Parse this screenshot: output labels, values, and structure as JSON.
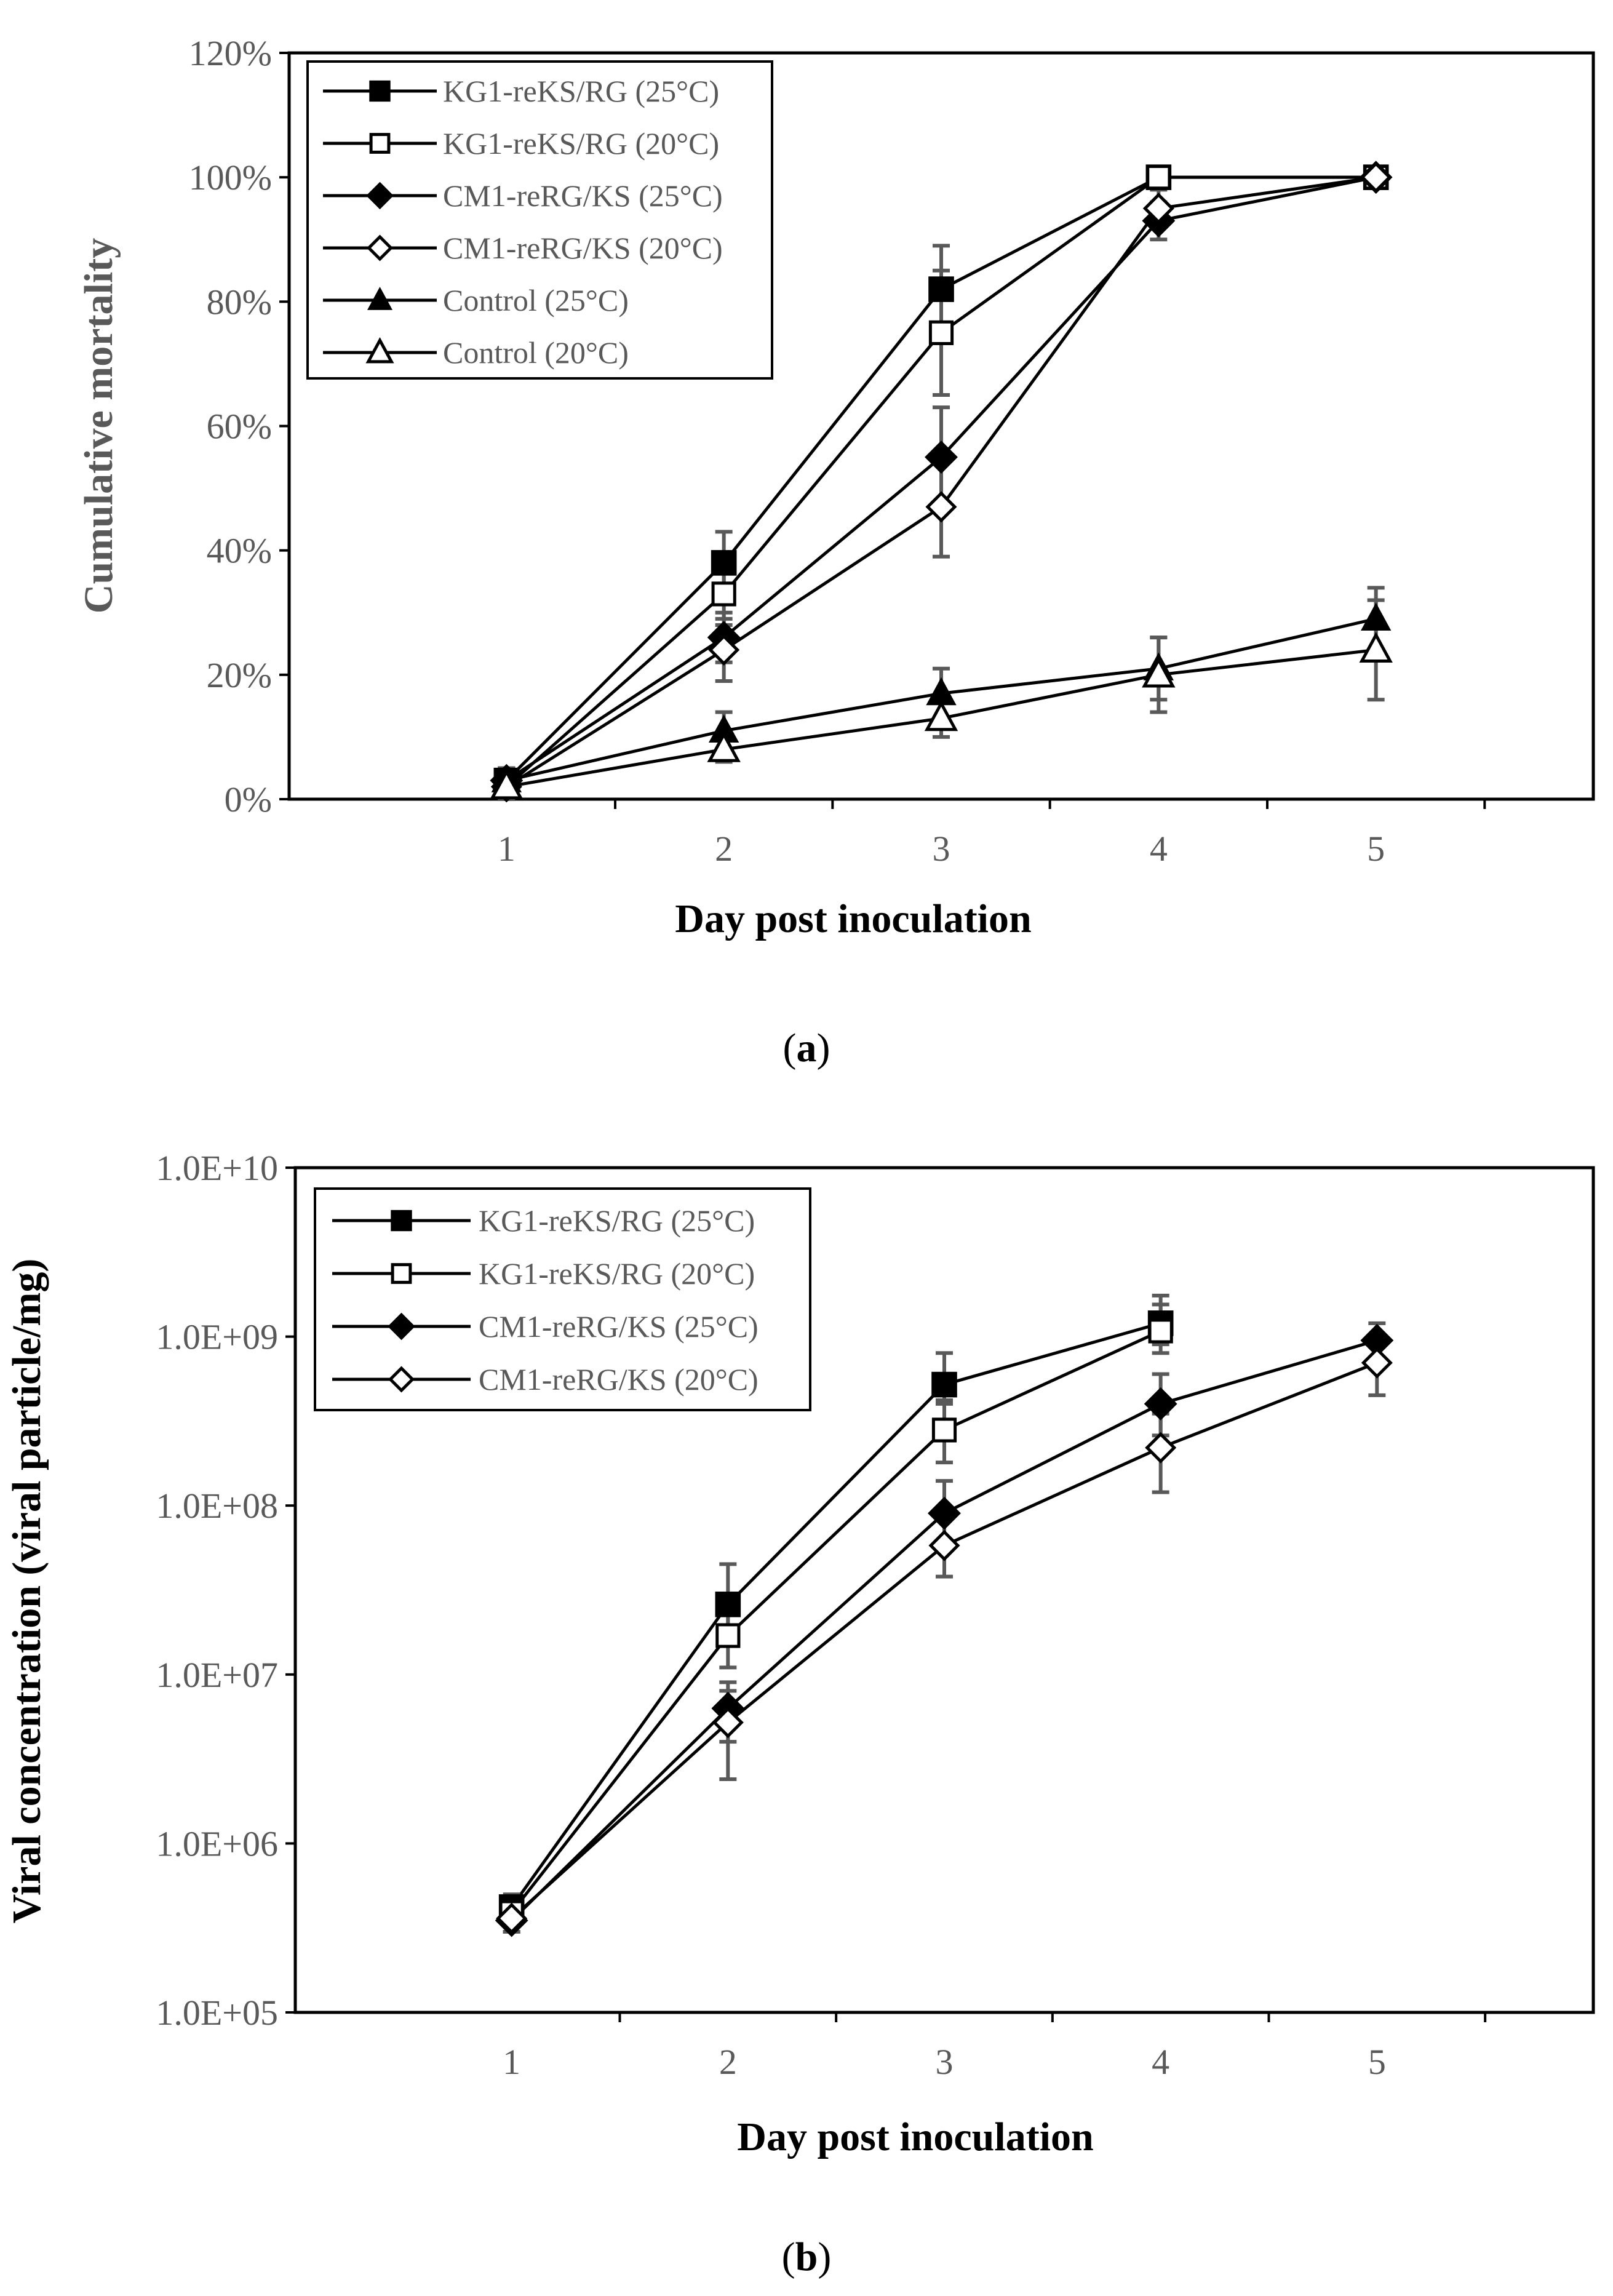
{
  "chart_data": [
    {
      "type": "line",
      "caption": "a",
      "xlabel": "Day post inoculation",
      "ylabel": "Cumulative mortality",
      "x": [
        1,
        2,
        3,
        4,
        5
      ],
      "xlim": [
        0,
        6
      ],
      "ylim": [
        0,
        120
      ],
      "ytick_values": [
        0,
        20,
        40,
        60,
        80,
        100,
        120
      ],
      "ytick_labels": [
        "0%",
        "20%",
        "40%",
        "60%",
        "80%",
        "100%",
        "120%"
      ],
      "xtick_labels": [
        "1",
        "2",
        "3",
        "4",
        "5"
      ],
      "legend_position": "top-left",
      "series": [
        {
          "name": "KG1-reKS/RG (25°C)",
          "marker": "square-filled",
          "values": [
            3,
            38,
            82,
            100,
            100
          ],
          "errors": [
            2,
            5,
            7,
            0,
            0
          ]
        },
        {
          "name": "KG1-reKS/RG (20°C)",
          "marker": "square-open",
          "values": [
            2,
            33,
            75,
            100,
            100
          ],
          "errors": [
            2,
            5,
            10,
            0,
            0
          ]
        },
        {
          "name": "CM1-reRG/KS (25°C)",
          "marker": "diamond-filled",
          "values": [
            3,
            26,
            55,
            93,
            100
          ],
          "errors": [
            2,
            4,
            8,
            3,
            0
          ]
        },
        {
          "name": "CM1-reRG/KS (20°C)",
          "marker": "diamond-open",
          "values": [
            2,
            24,
            47,
            95,
            100
          ],
          "errors": [
            2,
            5,
            8,
            3,
            0
          ]
        },
        {
          "name": "Control (25°C)",
          "marker": "triangle-filled",
          "values": [
            3,
            11,
            17,
            21,
            29
          ],
          "errors": [
            2,
            3,
            4,
            5,
            5
          ]
        },
        {
          "name": "Control (20°C)",
          "marker": "triangle-open",
          "values": [
            2,
            8,
            13,
            20,
            24
          ],
          "errors": [
            2,
            2,
            3,
            6,
            8
          ]
        }
      ]
    },
    {
      "type": "line",
      "caption": "b",
      "xlabel": "Day post inoculation",
      "ylabel": "Viral concentration (viral particle/mg)",
      "yscale": "log",
      "x": [
        1,
        2,
        3,
        4,
        5
      ],
      "xlim": [
        0,
        6
      ],
      "ylim": [
        100000,
        10000000000
      ],
      "ytick_values": [
        100000,
        1000000,
        10000000,
        100000000,
        1000000000,
        10000000000
      ],
      "ytick_labels": [
        "1.0E+05",
        "1.0E+06",
        "1.0E+07",
        "1.0E+08",
        "1.0E+09",
        "1.0E+10"
      ],
      "xtick_labels": [
        "1",
        "2",
        "3",
        "4",
        "5"
      ],
      "legend_position": "top-left",
      "series": [
        {
          "name": "KG1-reKS/RG (25°C)",
          "marker": "square-filled",
          "x": [
            1,
            2,
            3,
            4
          ],
          "values": [
            420000,
            26000000,
            520000000,
            1200000000
          ],
          "err_low": [
            350000,
            18000000,
            400000000,
            900000000
          ],
          "err_high": [
            500000,
            45000000,
            800000000,
            1750000000
          ]
        },
        {
          "name": "KG1-reKS/RG (20°C)",
          "marker": "square-open",
          "x": [
            1,
            2,
            3,
            4
          ],
          "values": [
            390000,
            17000000,
            280000000,
            1080000000
          ],
          "err_low": [
            330000,
            11000000,
            180000000,
            800000000
          ],
          "err_high": [
            460000,
            30000000,
            420000000,
            1550000000
          ]
        },
        {
          "name": "CM1-reRG/KS (25°C)",
          "marker": "diamond-filled",
          "x": [
            1,
            2,
            3,
            4,
            5
          ],
          "values": [
            350000,
            6300000,
            90000000,
            400000000,
            950000000
          ],
          "err_low": [
            300000,
            4000000,
            60000000,
            260000000,
            750000000
          ],
          "err_high": [
            420000,
            9000000,
            140000000,
            600000000,
            1200000000
          ]
        },
        {
          "name": "CM1-reRG/KS (20°C)",
          "marker": "diamond-open",
          "x": [
            1,
            2,
            3,
            4,
            5
          ],
          "values": [
            360000,
            5200000,
            58000000,
            220000000,
            700000000
          ],
          "err_low": [
            300000,
            2400000,
            38000000,
            120000000,
            450000000
          ],
          "err_high": [
            430000,
            8000000,
            90000000,
            350000000,
            950000000
          ]
        }
      ]
    }
  ]
}
